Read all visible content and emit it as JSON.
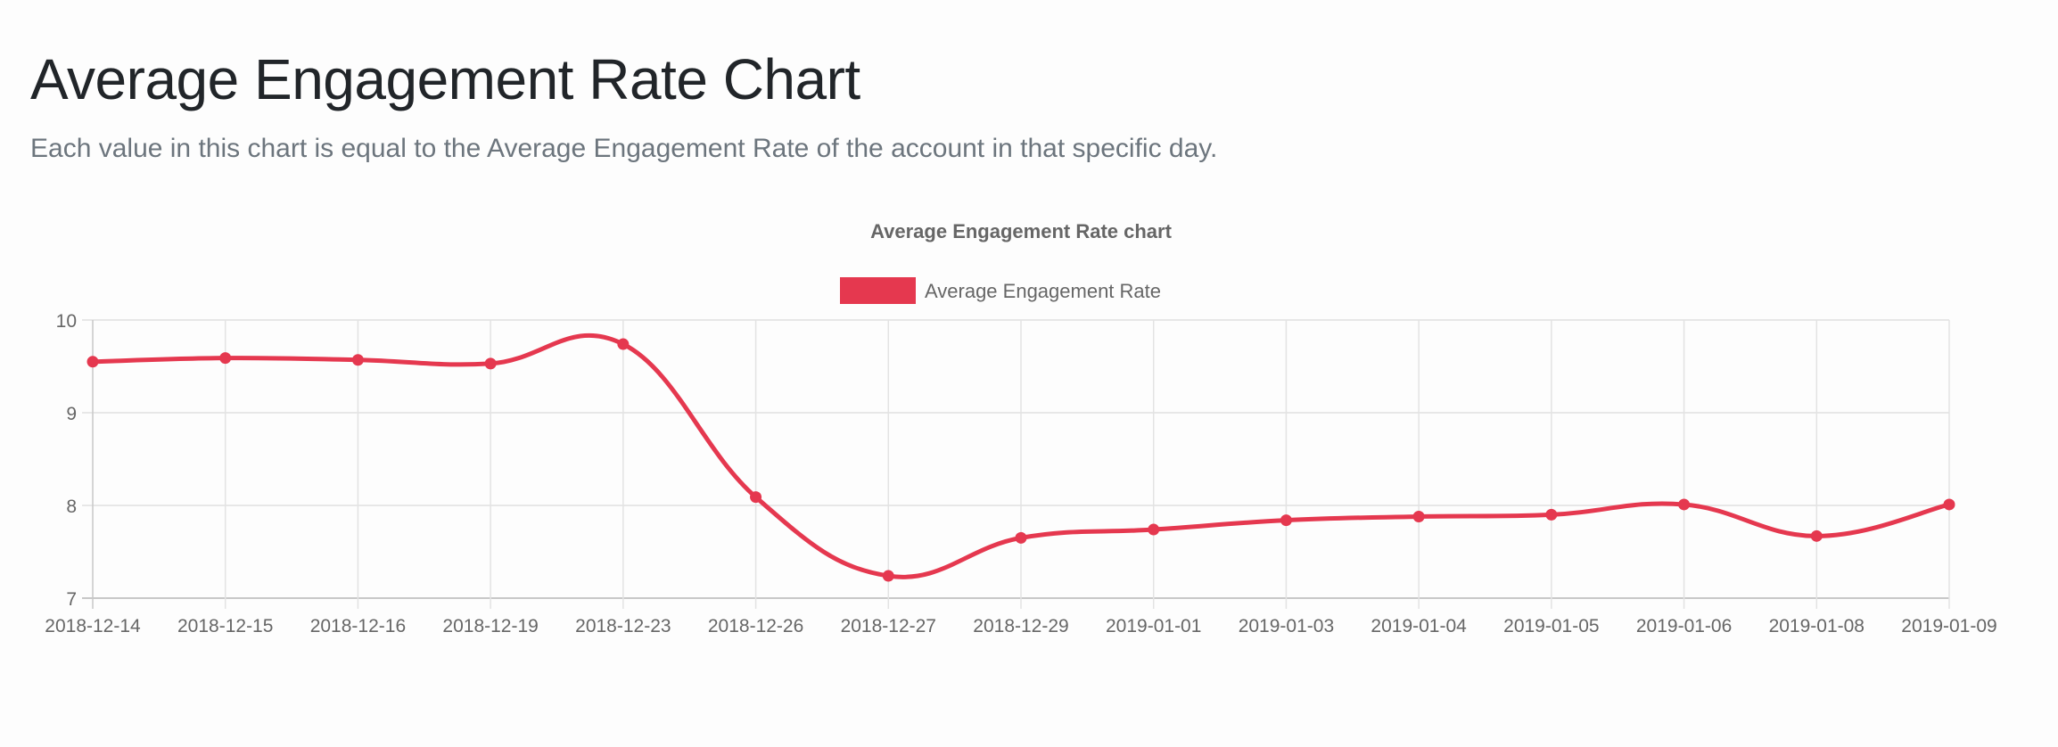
{
  "header": {
    "title": "Average Engagement Rate Chart",
    "subtitle": "Each value in this chart is equal to the Average Engagement Rate of the account in that specific day."
  },
  "chart_data": {
    "type": "line",
    "title": "Average Engagement Rate chart",
    "legend": {
      "label": "Average Engagement Rate",
      "position": "top"
    },
    "categories": [
      "2018-12-14",
      "2018-12-15",
      "2018-12-16",
      "2018-12-19",
      "2018-12-23",
      "2018-12-26",
      "2018-12-27",
      "2018-12-29",
      "2019-01-01",
      "2019-01-03",
      "2019-01-04",
      "2019-01-05",
      "2019-01-06",
      "2019-01-08",
      "2019-01-09"
    ],
    "series": [
      {
        "name": "Average Engagement Rate",
        "values": [
          9.55,
          9.59,
          9.57,
          9.53,
          9.74,
          8.09,
          7.24,
          7.65,
          7.74,
          7.84,
          7.88,
          7.9,
          8.01,
          7.67,
          8.01
        ],
        "color": "#e5384f"
      }
    ],
    "ylim": [
      7,
      10
    ],
    "yticks": [
      "10",
      "9",
      "8",
      "7"
    ],
    "grid": true,
    "xlabel": "",
    "ylabel": ""
  }
}
